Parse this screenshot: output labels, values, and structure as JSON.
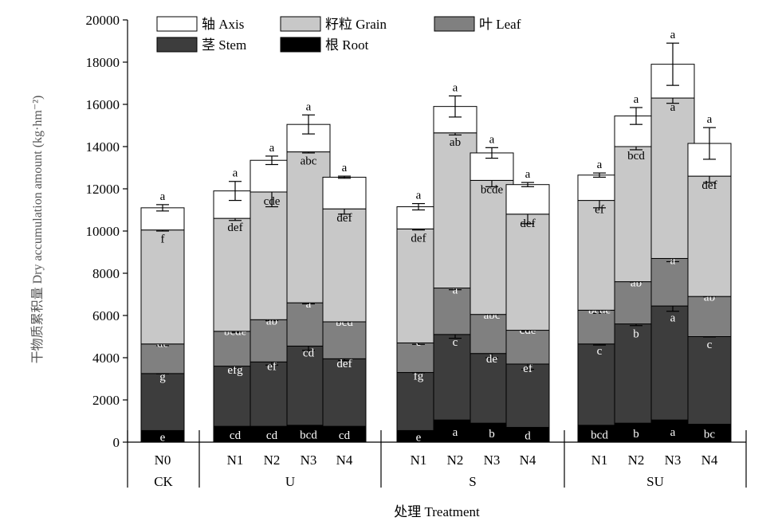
{
  "chart_data": {
    "type": "bar",
    "stacked": true,
    "xlabel": "处理 Treatment",
    "ylabel": "干物质累积量 Dry accumulation amount (kg·hm⁻²)",
    "ylim": [
      0,
      20000
    ],
    "yticks": [
      0,
      2000,
      4000,
      6000,
      8000,
      10000,
      12000,
      14000,
      16000,
      18000,
      20000
    ],
    "groups": [
      {
        "label": "CK",
        "categories": [
          "N0"
        ]
      },
      {
        "label": "U",
        "categories": [
          "N1",
          "N2",
          "N3",
          "N4"
        ]
      },
      {
        "label": "S",
        "categories": [
          "N1",
          "N2",
          "N3",
          "N4"
        ]
      },
      {
        "label": "SU",
        "categories": [
          "N1",
          "N2",
          "N3",
          "N4"
        ]
      }
    ],
    "categories": [
      "N0",
      "N1",
      "N2",
      "N3",
      "N4",
      "N1",
      "N2",
      "N3",
      "N4",
      "N1",
      "N2",
      "N3",
      "N4"
    ],
    "legend_order": [
      "轴 Axis",
      "籽粒 Grain",
      "叶 Leaf",
      "茎 Stem",
      "根 Root"
    ],
    "series": [
      {
        "name": "根 Root",
        "color": "#000000",
        "label_color": "#ffffff",
        "values": [
          550,
          750,
          750,
          800,
          750,
          550,
          1050,
          900,
          700,
          800,
          900,
          1050,
          850
        ],
        "letters": [
          "e",
          "cd",
          "cd",
          "bcd",
          "cd",
          "e",
          "a",
          "b",
          "d",
          "bcd",
          "b",
          "a",
          "bc"
        ],
        "errors": [
          0,
          0,
          0,
          0,
          0,
          0,
          0,
          0,
          0,
          0,
          0,
          0,
          0
        ]
      },
      {
        "name": "茎 Stem",
        "color": "#3d3d3d",
        "label_color": "#ffffff",
        "values": [
          2700,
          2850,
          3050,
          3750,
          3200,
          2750,
          4050,
          3300,
          3000,
          3850,
          4700,
          5400,
          4150
        ],
        "letters": [
          "g",
          "efg",
          "ef",
          "cd",
          "def",
          "fg",
          "c",
          "de",
          "ef",
          "c",
          "b",
          "a",
          "c"
        ],
        "errors": [
          0,
          100,
          150,
          200,
          80,
          0,
          180,
          200,
          250,
          50,
          80,
          250,
          0
        ]
      },
      {
        "name": "叶 Leaf",
        "color": "#808080",
        "label_color": "#ffffff",
        "values": [
          1400,
          1650,
          2000,
          2050,
          1750,
          1400,
          2200,
          1850,
          1600,
          1600,
          2000,
          2250,
          1900
        ],
        "letters": [
          "de",
          "bcde",
          "ab",
          "a",
          "bcd",
          "e",
          "a",
          "abc",
          "cde",
          "bcde",
          "ab",
          "a",
          "ab"
        ],
        "errors": [
          80,
          50,
          50,
          50,
          0,
          70,
          80,
          0,
          50,
          150,
          0,
          150,
          0
        ]
      },
      {
        "name": "籽粒 Grain",
        "color": "#c8c8c8",
        "label_color": "#000000",
        "values": [
          5400,
          5350,
          6050,
          7150,
          5350,
          5400,
          7350,
          6350,
          5500,
          5200,
          6400,
          7600,
          5700
        ],
        "letters": [
          "f",
          "def",
          "cde",
          "abc",
          "def",
          "def",
          "ab",
          "bcde",
          "def",
          "ef",
          "bcd",
          "a",
          "def"
        ],
        "errors": [
          50,
          100,
          700,
          50,
          250,
          50,
          100,
          300,
          450,
          350,
          150,
          250,
          300
        ]
      },
      {
        "name": "轴 Axis",
        "color": "#ffffff",
        "label_color": "#000000",
        "values": [
          1050,
          1300,
          1500,
          1300,
          1500,
          1050,
          1250,
          1300,
          1400,
          1200,
          1450,
          1600,
          1550
        ],
        "letters": [
          "a",
          "a",
          "a",
          "a",
          "a",
          "a",
          "a",
          "a",
          "a",
          "a",
          "a",
          "a",
          "a"
        ],
        "errors": [
          150,
          450,
          200,
          450,
          50,
          150,
          500,
          250,
          100,
          100,
          400,
          1000,
          750
        ]
      }
    ]
  }
}
